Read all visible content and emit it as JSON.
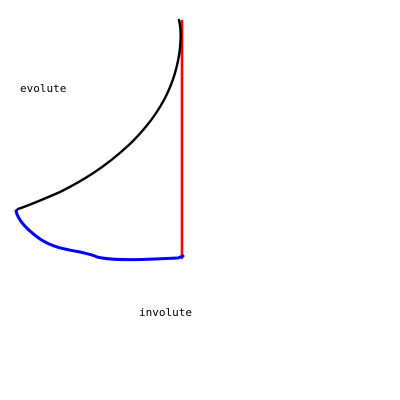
{
  "labels": {
    "evolute": "evolute",
    "involute": "involute"
  },
  "curves": [
    {
      "name": "evolute-curve",
      "color": "#000000"
    },
    {
      "name": "involute-curve",
      "color": "#0000ff"
    },
    {
      "name": "tangent-line",
      "color": "#ff0000"
    }
  ]
}
